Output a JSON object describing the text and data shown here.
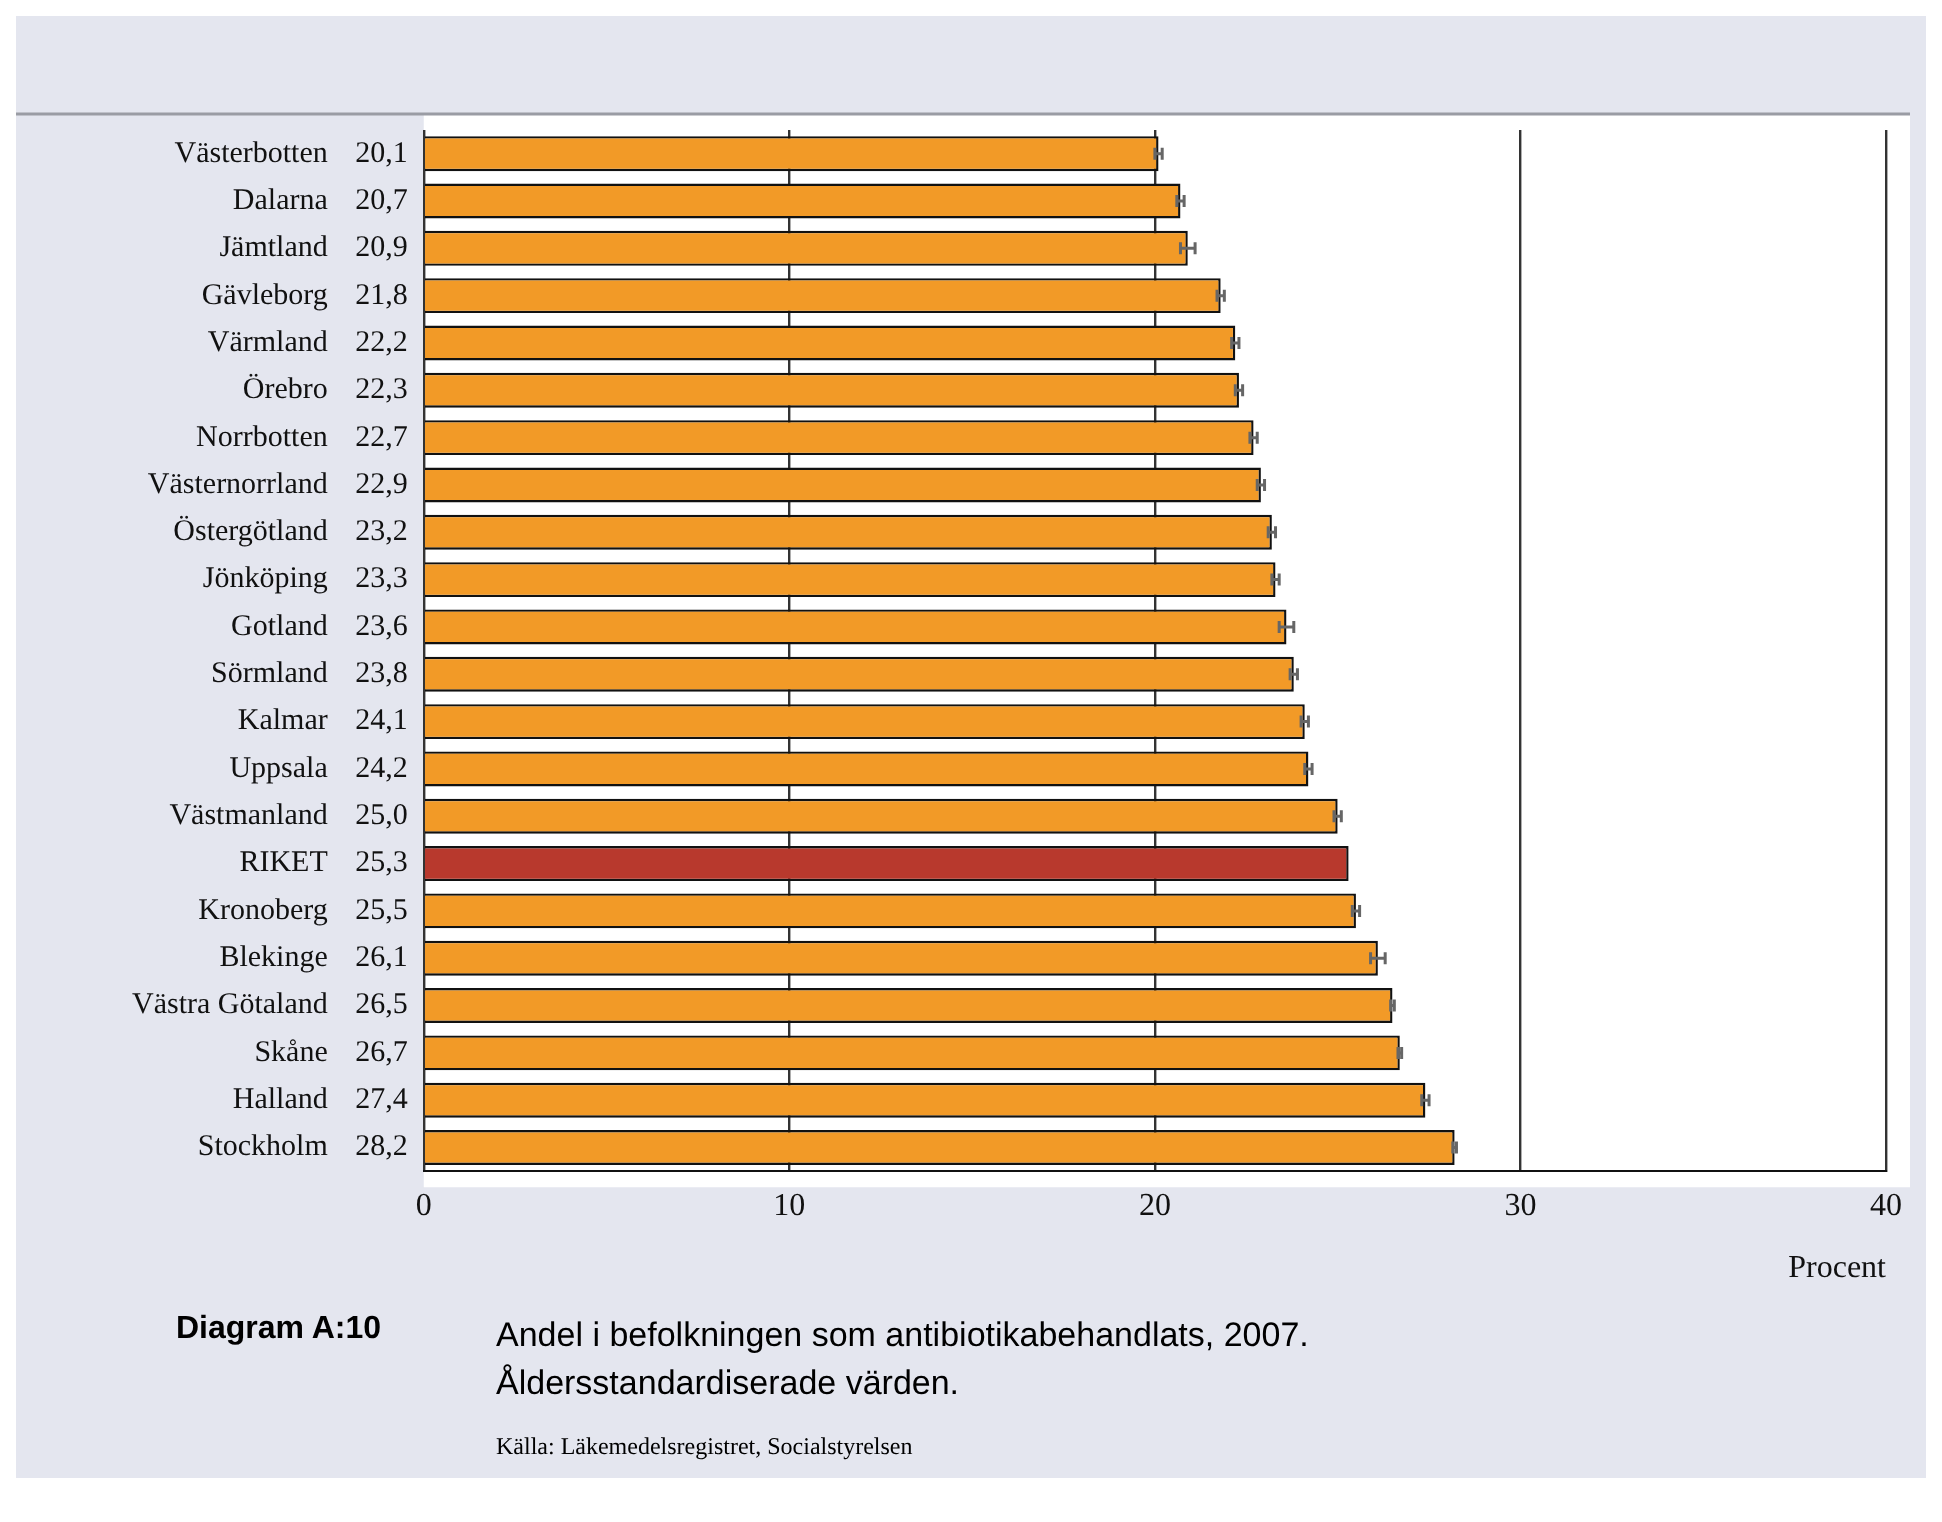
{
  "chart_data": {
    "type": "bar",
    "orientation": "horizontal",
    "title": "Andel i befolkningen som antibiotikabehandlats, 2007.\nÅldersstandardiserade värden.",
    "xlabel": "Procent",
    "annotations": [
      "Diagram A:10",
      "Källa: Läkemedelsregistret, Socialstyrelsen"
    ],
    "categories": [
      "Västerbotten",
      "Dalarna",
      "Jämtland",
      "Gävleborg",
      "Värmland",
      "Örebro",
      "Norrbotten",
      "Västernorrland",
      "Östergötland",
      "Jönköping",
      "Gotland",
      "Sörmland",
      "Kalmar",
      "Uppsala",
      "Västmanland",
      "RIKET",
      "Kronoberg",
      "Blekinge",
      "Västra Götaland",
      "Skåne",
      "Halland",
      "Stockholm"
    ],
    "values": [
      20.1,
      20.7,
      20.9,
      21.8,
      22.2,
      22.3,
      22.7,
      22.9,
      23.2,
      23.3,
      23.6,
      23.8,
      24.1,
      24.2,
      25.0,
      25.3,
      25.5,
      26.1,
      26.5,
      26.7,
      27.4,
      28.2
    ],
    "value_labels": [
      "20,1",
      "20,7",
      "20,9",
      "21,8",
      "22,2",
      "22,3",
      "22,7",
      "22,9",
      "23,2",
      "23,3",
      "23,6",
      "23,8",
      "24,1",
      "24,2",
      "25,0",
      "25,3",
      "25,5",
      "26,1",
      "26,5",
      "26,7",
      "27,4",
      "28,2"
    ],
    "errors": [
      0.1,
      0.1,
      0.2,
      0.1,
      0.1,
      0.1,
      0.1,
      0.1,
      0.1,
      0.1,
      0.2,
      0.1,
      0.1,
      0.1,
      0.1,
      null,
      0.1,
      0.2,
      0.05,
      0.05,
      0.1,
      0.05
    ],
    "colors": [
      "#f29a27",
      "#f29a27",
      "#f29a27",
      "#f29a27",
      "#f29a27",
      "#f29a27",
      "#f29a27",
      "#f29a27",
      "#f29a27",
      "#f29a27",
      "#f29a27",
      "#f29a27",
      "#f29a27",
      "#f29a27",
      "#f29a27",
      "#b8392d",
      "#f29a27",
      "#f29a27",
      "#f29a27",
      "#f29a27",
      "#f29a27",
      "#f29a27"
    ],
    "xlim": [
      0,
      40
    ],
    "xticks": [
      0,
      10,
      20,
      30,
      40
    ],
    "grid": "x",
    "legend": false
  }
}
